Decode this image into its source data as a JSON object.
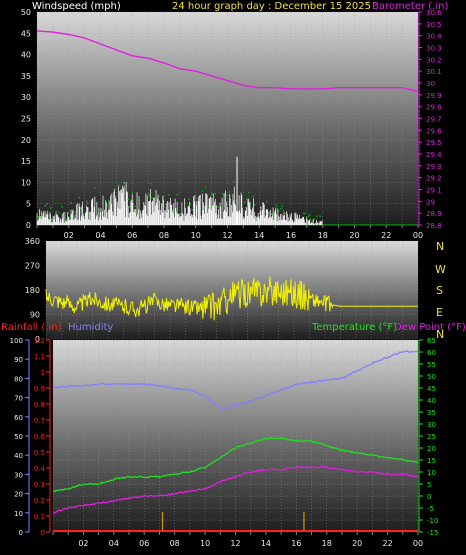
{
  "header": {
    "left_label": "Windspeed (mph)",
    "title": "24 hour graph day : December 15 2025",
    "right_label": "Barometer (.in)"
  },
  "middle": {
    "compass_labels": [
      "N",
      "W",
      "S",
      "E",
      "N"
    ]
  },
  "bottom_header": {
    "rain_label": "Rainfall (.in)",
    "humidity_label": "Humidity",
    "temp_label": "Temperature (°F)",
    "dew_label": "Dew Point (°F)"
  },
  "colors": {
    "wind": "#ffffff",
    "gust": "#00c800",
    "barometer": "#e020e0",
    "direction": "#f0f000",
    "rain": "#ff2020",
    "humidity": "#8080ff",
    "temperature": "#20e020",
    "dewpoint": "#e020e0",
    "rain_marks": "#c8a000"
  },
  "chart_data": [
    {
      "type": "line",
      "name": "wind-barometer",
      "x_ticks": [
        "02",
        "04",
        "06",
        "08",
        "10",
        "12",
        "14",
        "16",
        "18",
        "20",
        "22",
        "00"
      ],
      "y_left": {
        "label": "Windspeed (mph)",
        "range": [
          0,
          50
        ],
        "ticks": [
          0,
          5,
          10,
          15,
          20,
          25,
          30,
          35,
          40,
          45,
          50
        ]
      },
      "y_right": {
        "label": "Barometer (.in)",
        "range": [
          28.8,
          30.6
        ],
        "ticks": [
          "28.8",
          "28.9",
          "29",
          "29.1",
          "29.2",
          "29.3",
          "29.4",
          "29.5",
          "29.6",
          "29.7",
          "29.8",
          "29.9",
          "30",
          "30.1",
          "30.2",
          "30.3",
          "30.4",
          "30.5",
          "30.6"
        ]
      },
      "series": [
        {
          "name": "Barometer (.in)",
          "axis": "right",
          "x": [
            0,
            1,
            2,
            3,
            4,
            5,
            6,
            7,
            8,
            9,
            10,
            11,
            12,
            13,
            14,
            15,
            16,
            17,
            18,
            19,
            20,
            21,
            22,
            23,
            24
          ],
          "values": [
            30.44,
            30.43,
            30.41,
            30.38,
            30.33,
            30.28,
            30.23,
            30.21,
            30.17,
            30.12,
            30.1,
            30.06,
            30.02,
            29.98,
            29.96,
            29.96,
            29.95,
            29.95,
            29.95,
            29.96,
            29.96,
            29.96,
            29.96,
            29.96,
            29.93
          ]
        },
        {
          "name": "Windspeed (mph)",
          "axis": "left",
          "x": [
            0.5,
            1.5,
            2.5,
            3.5,
            4.5,
            5.5,
            6.5,
            7.5,
            8.5,
            9.5,
            10.5,
            11.5,
            12.5,
            13.5,
            14.5,
            15.5,
            16.5,
            17.5
          ],
          "values": [
            3,
            2,
            4,
            5,
            6,
            8,
            6,
            7,
            5,
            5,
            6,
            6,
            7,
            5,
            4,
            3,
            2,
            1
          ]
        },
        {
          "name": "Wind gust (mph)",
          "axis": "left",
          "x": [
            0.5,
            1.5,
            2.5,
            3.5,
            4.5,
            5.5,
            6.5,
            7.5,
            8.5,
            9.5,
            10.5,
            11.5,
            12.5,
            13.5,
            14.5,
            15.5,
            16.5,
            17.5
          ],
          "values": [
            5,
            4,
            6,
            9,
            8,
            10,
            12,
            9,
            9,
            7,
            10,
            9,
            16,
            7,
            6,
            6,
            3,
            2
          ]
        }
      ]
    },
    {
      "type": "line",
      "name": "wind-direction",
      "x_ticks": [
        "02",
        "04",
        "06",
        "08",
        "10",
        "12",
        "14",
        "16",
        "18",
        "20",
        "22",
        "00"
      ],
      "y_left": {
        "range": [
          0,
          360
        ],
        "ticks": [
          0,
          90,
          180,
          270,
          360
        ]
      },
      "series": [
        {
          "name": "Wind direction",
          "x": [
            0,
            1,
            2,
            3,
            4,
            5,
            6,
            7,
            8,
            9,
            10,
            11,
            12,
            13,
            14,
            15,
            16,
            17,
            18,
            19,
            20,
            21,
            22,
            23,
            24
          ],
          "values": [
            160,
            140,
            120,
            150,
            130,
            120,
            110,
            140,
            125,
            120,
            115,
            120,
            160,
            170,
            175,
            180,
            170,
            150,
            130,
            120,
            120,
            120,
            120,
            120,
            120
          ]
        }
      ]
    },
    {
      "type": "line",
      "name": "rain-humidity-temperature",
      "x_ticks": [
        "02",
        "04",
        "06",
        "08",
        "10",
        "12",
        "14",
        "16",
        "18",
        "20",
        "22",
        "00"
      ],
      "y_rain": {
        "label": "Rainfall (.in)",
        "range": [
          0,
          1.2
        ],
        "ticks": [
          "0",
          "0.1",
          "0.2",
          "0.3",
          "0.4",
          "0.5",
          "0.6",
          "0.7",
          "0.8",
          "0.9",
          "1",
          "1.1",
          "1.2"
        ]
      },
      "y_humidity": {
        "label": "Humidity",
        "range": [
          0,
          100
        ],
        "ticks": [
          0,
          10,
          20,
          30,
          40,
          50,
          60,
          70,
          80,
          90,
          100
        ]
      },
      "y_temp": {
        "label": "Temperature (°F)",
        "range": [
          -15,
          65
        ],
        "ticks": [
          -15,
          -10,
          -5,
          0,
          5,
          10,
          15,
          20,
          25,
          30,
          35,
          40,
          45,
          50,
          55,
          60,
          65
        ]
      },
      "series": [
        {
          "name": "Humidity",
          "axis": "humidity",
          "x": [
            0,
            1,
            2,
            3,
            4,
            5,
            6,
            7,
            8,
            9,
            10,
            11,
            12,
            13,
            14,
            15,
            16,
            17,
            18,
            19,
            20,
            21,
            22,
            23,
            24
          ],
          "values": [
            75,
            76,
            76,
            77,
            77,
            77,
            77,
            76,
            75,
            74,
            71,
            64,
            66,
            68,
            71,
            74,
            77,
            78,
            79,
            80,
            84,
            88,
            91,
            94,
            94
          ]
        },
        {
          "name": "Temperature (°F)",
          "axis": "temp",
          "x": [
            0,
            1,
            2,
            3,
            4,
            5,
            6,
            7,
            8,
            9,
            10,
            11,
            12,
            13,
            14,
            15,
            16,
            17,
            18,
            19,
            20,
            21,
            22,
            23,
            24
          ],
          "values": [
            2,
            3,
            5,
            5,
            7,
            8,
            8,
            8,
            9,
            10,
            12,
            16,
            20,
            22,
            24,
            24,
            23,
            23,
            21,
            19,
            18,
            17,
            16,
            15,
            14
          ]
        },
        {
          "name": "Dew Point (°F)",
          "axis": "temp",
          "x": [
            0,
            1,
            2,
            3,
            4,
            5,
            6,
            7,
            8,
            9,
            10,
            11,
            12,
            13,
            14,
            15,
            16,
            17,
            18,
            19,
            20,
            21,
            22,
            23,
            24
          ],
          "values": [
            -7,
            -5,
            -4,
            -3,
            -2,
            -1,
            0,
            0,
            1,
            2,
            3,
            6,
            8,
            10,
            11,
            11,
            12,
            12,
            12,
            11,
            10,
            10,
            9,
            9,
            8
          ]
        },
        {
          "name": "Rainfall (.in)",
          "axis": "rain",
          "x": [
            0,
            24
          ],
          "values": [
            0,
            0
          ]
        }
      ]
    }
  ]
}
